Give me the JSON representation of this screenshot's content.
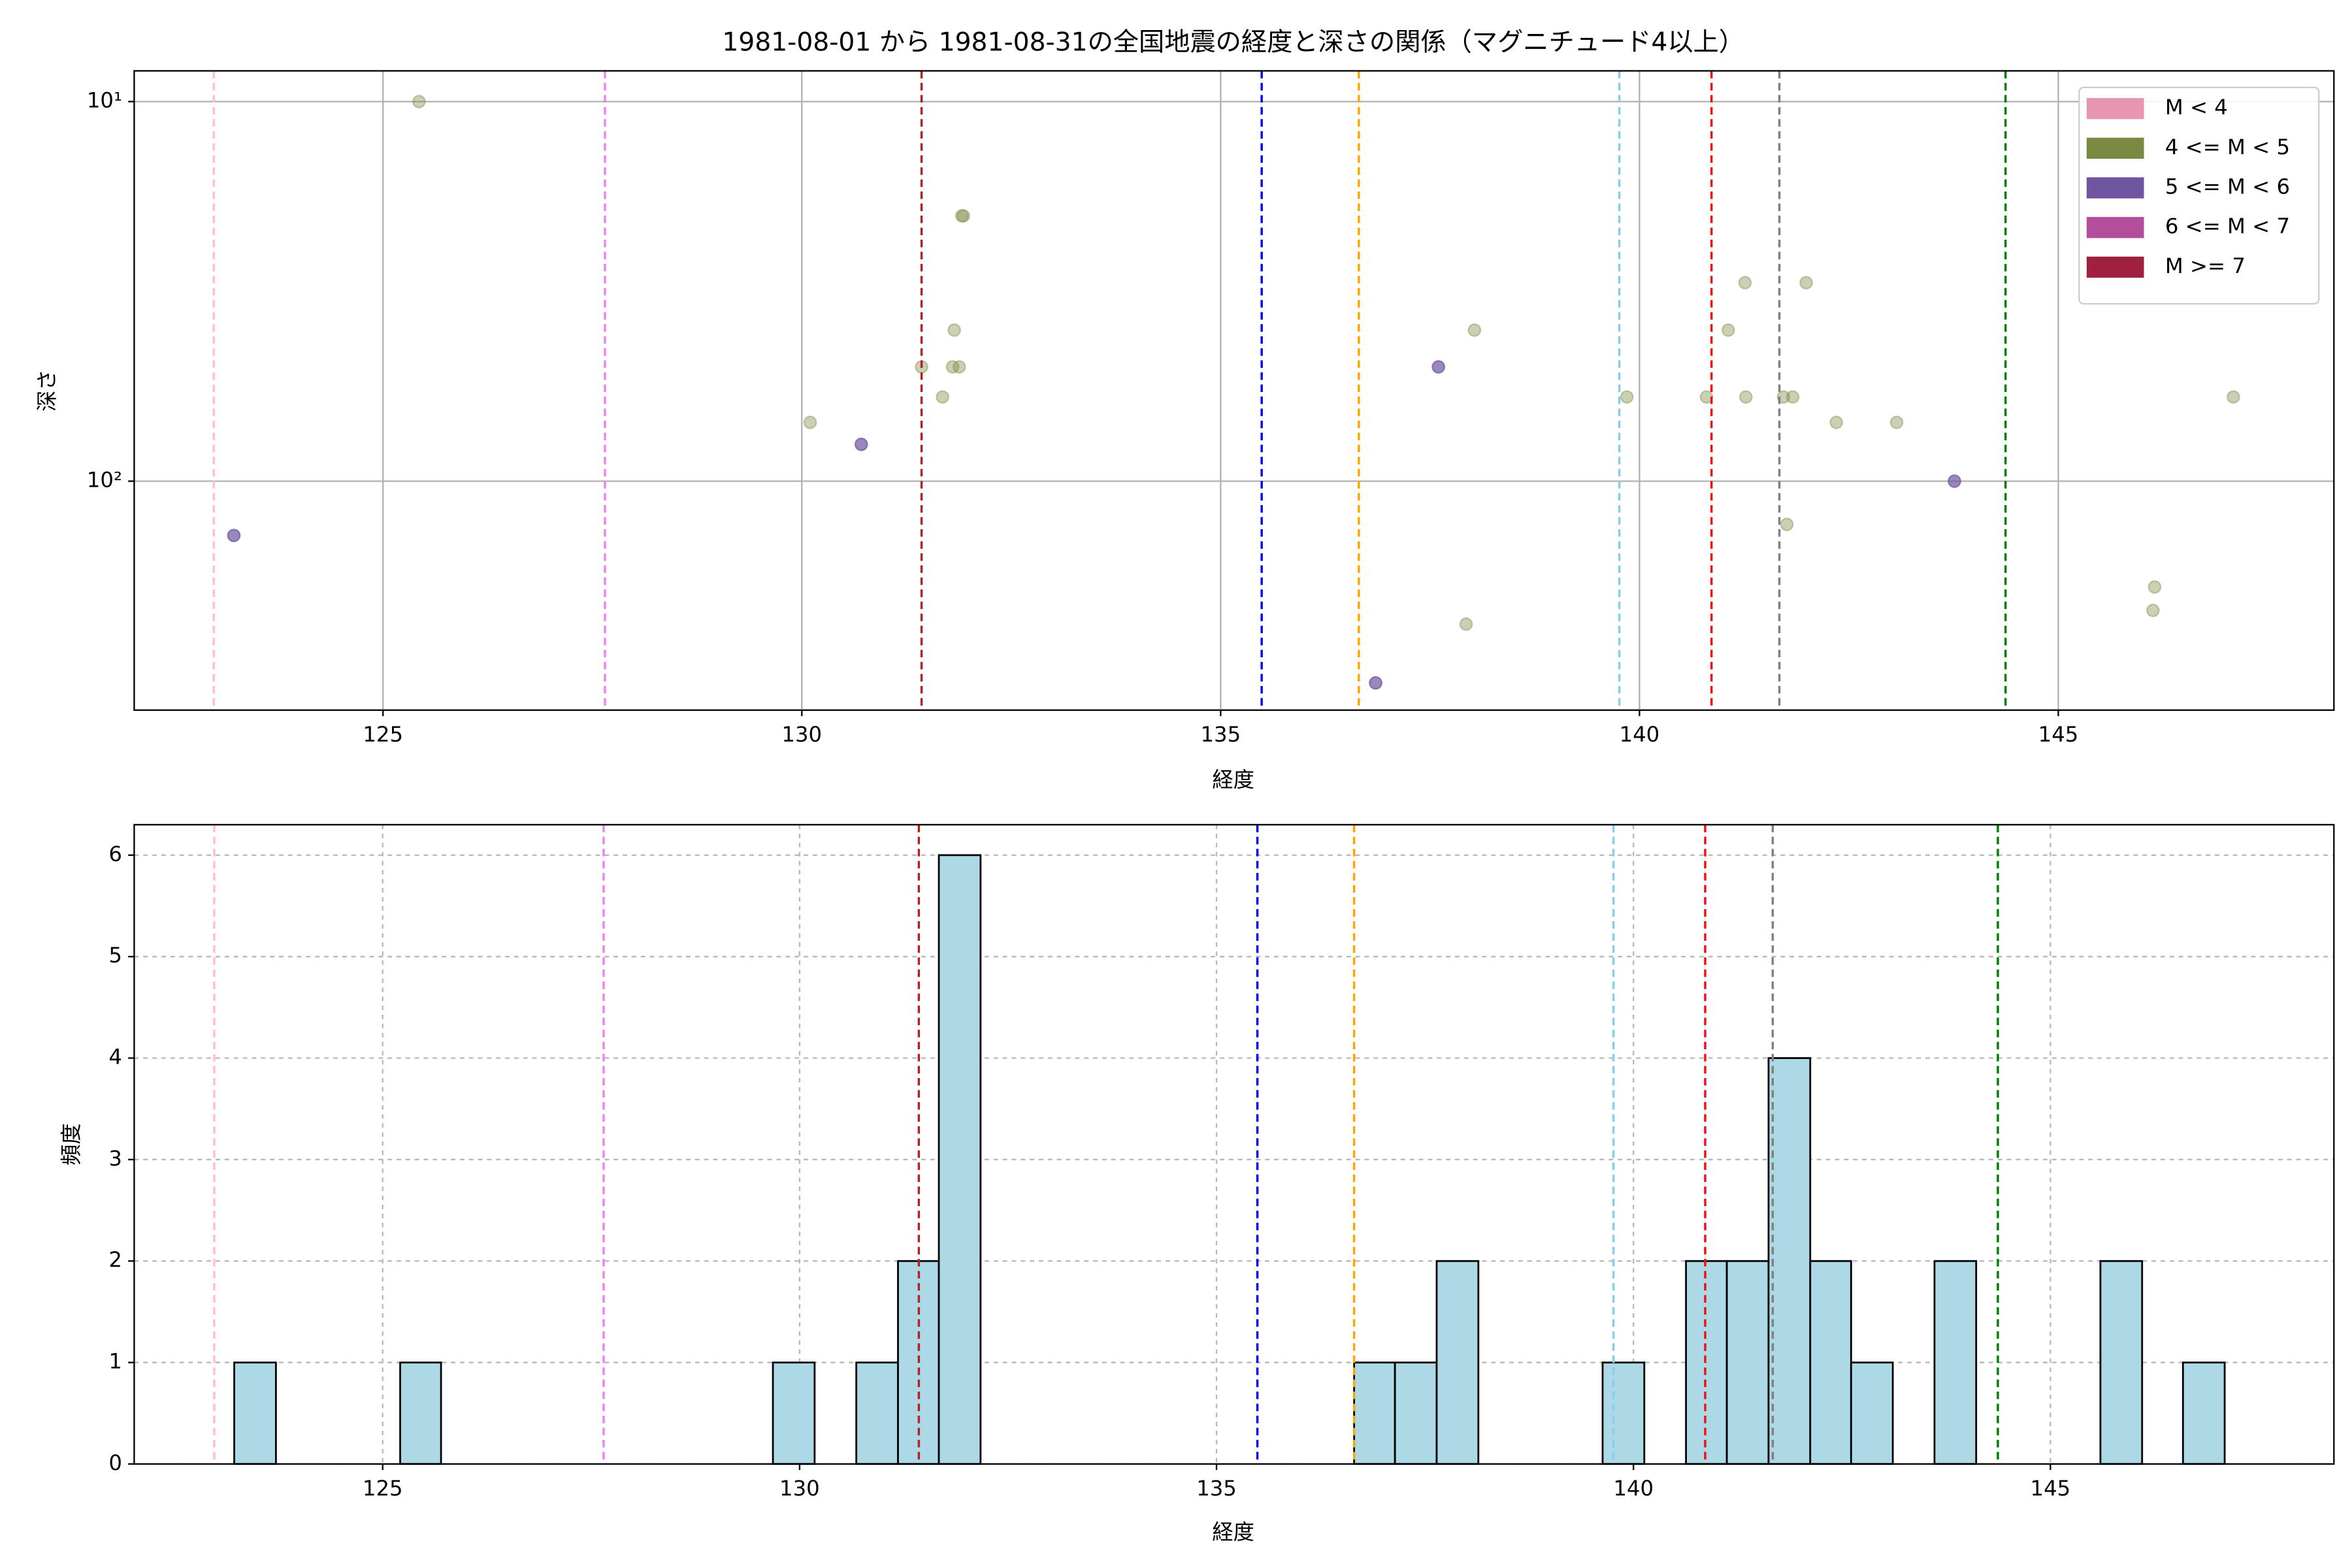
{
  "chart_data": [
    {
      "type": "scatter",
      "title": "1981-08-01 から 1981-08-31の全国地震の経度と深さの関係（マグニチュード4以上）",
      "xlabel": "経度",
      "ylabel": "深さ",
      "xlim": [
        122.03,
        148.29
      ],
      "xticks": [
        125,
        130,
        135,
        140,
        145
      ],
      "ylim": [
        401,
        8.3
      ],
      "yscale": "log",
      "yticks": [
        {
          "value": 10,
          "label": "10¹"
        },
        {
          "value": 100,
          "label": "10²"
        }
      ],
      "grid": true,
      "legend": "upper right",
      "series": [
        {
          "name": "M < 4",
          "color": "#e896b0",
          "alpha": 0.4,
          "x": [],
          "values": []
        },
        {
          "name": "4 <= M < 5",
          "color": "#7a8a42",
          "alpha": 0.4,
          "x": [
            125.43,
            130.1,
            131.43,
            131.68,
            131.82,
            131.8,
            131.88,
            131.91,
            131.93,
            138.03,
            137.93,
            139.85,
            140.8,
            141.06,
            141.26,
            141.27,
            141.72,
            141.83,
            141.76,
            141.99,
            142.35,
            143.07,
            146.15,
            146.13,
            147.09
          ],
          "values": [
            10,
            70,
            50,
            60,
            40,
            50,
            50,
            20,
            20,
            40,
            238,
            60,
            60,
            40,
            30,
            60,
            60,
            60,
            130,
            30,
            70,
            70,
            190,
            219,
            60
          ]
        },
        {
          "name": "5 <= M < 6",
          "color": "#6f55a0",
          "alpha": 0.7,
          "x": [
            123.22,
            130.71,
            137.6,
            136.85,
            143.76
          ],
          "values": [
            139,
            80,
            50,
            340,
            100
          ]
        },
        {
          "name": "6 <= M < 7",
          "color": "#b44e9c",
          "alpha": 0.7,
          "x": [],
          "values": []
        },
        {
          "name": "M >= 7",
          "color": "#a0203f",
          "alpha": 0.7,
          "x": [],
          "values": []
        }
      ],
      "reference_lines": [
        {
          "x": 122.98,
          "color": "#ffc0cb"
        },
        {
          "x": 127.65,
          "color": "#ee82ee"
        },
        {
          "x": 131.43,
          "color": "#b22222"
        },
        {
          "x": 135.49,
          "color": "#0000ff"
        },
        {
          "x": 136.65,
          "color": "#ffa500"
        },
        {
          "x": 139.76,
          "color": "#87ceeb"
        },
        {
          "x": 140.86,
          "color": "#ee1111"
        },
        {
          "x": 141.67,
          "color": "#808080"
        },
        {
          "x": 144.37,
          "color": "#008000"
        }
      ]
    },
    {
      "type": "histogram",
      "xlabel": "経度",
      "ylabel": "頻度",
      "xlim": [
        122.02,
        148.4
      ],
      "xticks": [
        125,
        130,
        135,
        140,
        145
      ],
      "ylim": [
        0,
        6.3
      ],
      "yticks": [
        0,
        1,
        2,
        3,
        4,
        5,
        6
      ],
      "grid": true,
      "color": "#add8e6",
      "bins": [
        123.22,
        123.72,
        124.21,
        124.71,
        125.21,
        125.7,
        126.2,
        126.7,
        127.2,
        127.7,
        128.19,
        128.69,
        129.19,
        129.68,
        130.18,
        130.68,
        131.18,
        131.67,
        132.17,
        132.67,
        133.17,
        133.66,
        134.16,
        134.66,
        135.16,
        135.65,
        136.15,
        136.65,
        137.14,
        137.64,
        138.14,
        138.64,
        139.13,
        139.63,
        140.13,
        140.63,
        141.12,
        141.62,
        142.12,
        142.61,
        143.11,
        143.61,
        144.11,
        144.6,
        145.1,
        145.6,
        146.1,
        146.59,
        147.09
      ],
      "values": [
        1,
        0,
        0,
        0,
        1,
        0,
        0,
        0,
        0,
        0,
        0,
        0,
        0,
        1,
        0,
        1,
        2,
        6,
        0,
        0,
        0,
        0,
        0,
        0,
        0,
        0,
        0,
        1,
        1,
        2,
        0,
        0,
        0,
        1,
        0,
        2,
        2,
        4,
        2,
        1,
        0,
        2,
        0,
        0,
        0,
        2,
        0,
        1
      ],
      "reference_lines": [
        {
          "x": 122.98,
          "color": "#ffc0cb"
        },
        {
          "x": 127.65,
          "color": "#ee82ee"
        },
        {
          "x": 131.43,
          "color": "#b22222"
        },
        {
          "x": 135.49,
          "color": "#0000ff"
        },
        {
          "x": 136.65,
          "color": "#ffa500"
        },
        {
          "x": 139.76,
          "color": "#87ceeb"
        },
        {
          "x": 140.86,
          "color": "#ee1111"
        },
        {
          "x": 141.67,
          "color": "#808080"
        },
        {
          "x": 144.37,
          "color": "#008000"
        }
      ]
    }
  ]
}
